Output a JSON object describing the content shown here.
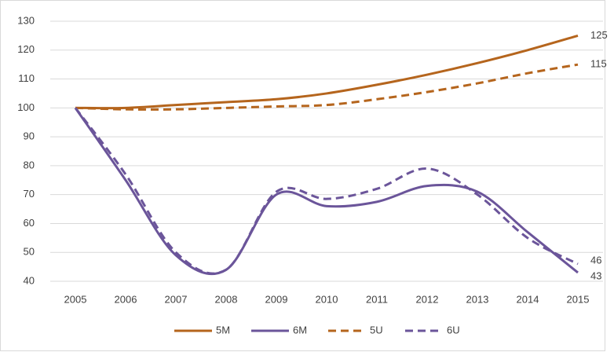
{
  "chart_data": {
    "type": "line",
    "categories": [
      "2005",
      "2006",
      "2007",
      "2008",
      "2009",
      "2010",
      "2011",
      "2012",
      "2013",
      "2014",
      "2015"
    ],
    "series": [
      {
        "name": "5M",
        "color": "#b5651d",
        "dashed": false,
        "values": [
          100,
          100,
          101,
          102,
          103,
          105,
          108,
          111.5,
          115.5,
          120,
          125
        ]
      },
      {
        "name": "6M",
        "color": "#6b559a",
        "dashed": false,
        "values": [
          100,
          75,
          49,
          44,
          70,
          66,
          67.5,
          73,
          71,
          57,
          43
        ]
      },
      {
        "name": "5U",
        "color": "#b5651d",
        "dashed": true,
        "values": [
          100,
          99.5,
          99.5,
          100,
          100.5,
          101,
          103,
          105.5,
          108.5,
          112,
          115
        ]
      },
      {
        "name": "6U",
        "color": "#6b559a",
        "dashed": true,
        "values": [
          100,
          77,
          50,
          44,
          71,
          68.5,
          72,
          79,
          70,
          55,
          46
        ]
      }
    ],
    "ylim": [
      40,
      130
    ],
    "yticks": [
      40,
      50,
      60,
      70,
      80,
      90,
      100,
      110,
      120,
      130
    ],
    "grid": true,
    "legend": "bottom"
  }
}
